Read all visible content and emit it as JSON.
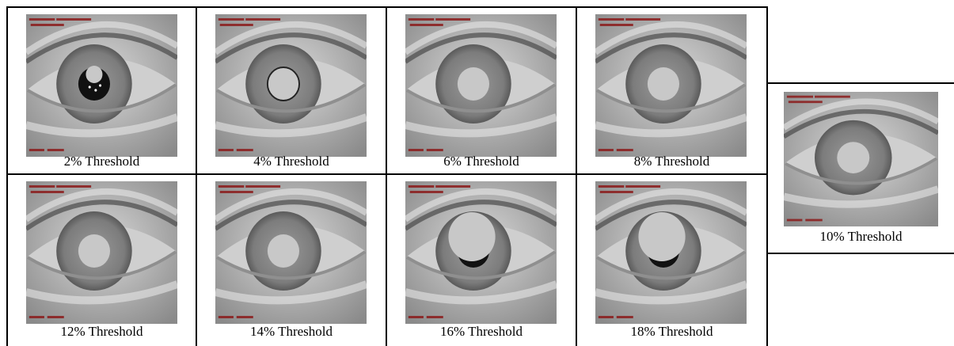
{
  "figure": {
    "panels": [
      {
        "caption": "2% Threshold",
        "threshold_pct": 2,
        "mask": "small",
        "pupil_visible": "ring-full"
      },
      {
        "caption": "4% Threshold",
        "threshold_pct": 4,
        "mask": "medium",
        "pupil_visible": "thin-ring"
      },
      {
        "caption": "6% Threshold",
        "threshold_pct": 6,
        "mask": "medium",
        "pupil_visible": "none"
      },
      {
        "caption": "8% Threshold",
        "threshold_pct": 8,
        "mask": "medium",
        "pupil_visible": "none"
      },
      {
        "caption": "12% Threshold",
        "threshold_pct": 12,
        "mask": "medium",
        "pupil_visible": "none"
      },
      {
        "caption": "14% Threshold",
        "threshold_pct": 14,
        "mask": "medium",
        "pupil_visible": "none"
      },
      {
        "caption": "16% Threshold",
        "threshold_pct": 16,
        "mask": "large-offset",
        "pupil_visible": "lower"
      },
      {
        "caption": "18% Threshold",
        "threshold_pct": 18,
        "mask": "large-offset",
        "pupil_visible": "lower"
      },
      {
        "caption": "10% Threshold",
        "threshold_pct": 10,
        "mask": "medium",
        "pupil_visible": "none"
      }
    ],
    "colors": {
      "mask": "#c8c8c8",
      "pupil": "#111111",
      "overlay_text": "#8b1a1a"
    }
  }
}
